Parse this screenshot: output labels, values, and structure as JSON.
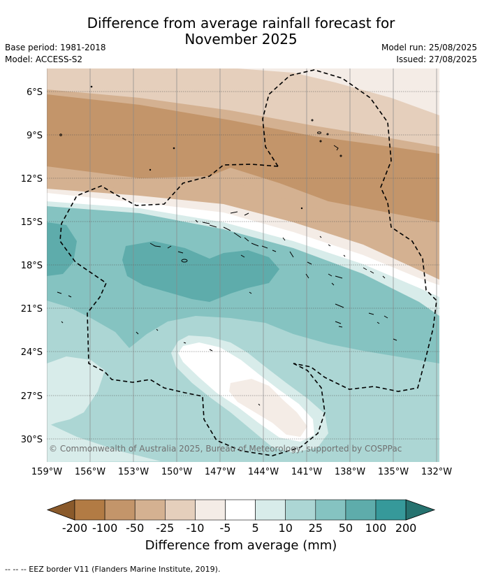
{
  "header": {
    "title_line1": "Difference from average rainfall forecast for",
    "title_line2": "November 2025",
    "base_period": "Base period: 1981-2018",
    "model": "Model: ACCESS-S2",
    "model_run": "Model run: 25/08/2025",
    "issued": "Issued: 27/08/2025"
  },
  "map": {
    "lat_labels": [
      "6°S",
      "9°S",
      "12°S",
      "15°S",
      "18°S",
      "21°S",
      "24°S",
      "27°S",
      "30°S"
    ],
    "lon_labels": [
      "159°W",
      "156°W",
      "153°W",
      "150°W",
      "147°W",
      "144°W",
      "141°W",
      "138°W",
      "135°W",
      "132°W"
    ],
    "copyright": "© Commonwealth of Australia 2025, Bureau of Meteorology, supported by COSPPac"
  },
  "colorbar": {
    "ticks": [
      "-200",
      "-100",
      "-50",
      "-25",
      "-10",
      "-5",
      "5",
      "10",
      "25",
      "50",
      "100",
      "200"
    ],
    "colors": [
      "#8a5a2b",
      "#b27b44",
      "#c3956a",
      "#d4b191",
      "#e5cfbc",
      "#f4ece6",
      "#ffffff",
      "#d8ecea",
      "#acd6d4",
      "#85c3c1",
      "#5eacab",
      "#36999a",
      "#26726f"
    ],
    "label": "Difference from average (mm)"
  },
  "footer": {
    "legend_text": "-- -- -- EEZ border V11 (Flanders Marine Institute, 2019)."
  }
}
